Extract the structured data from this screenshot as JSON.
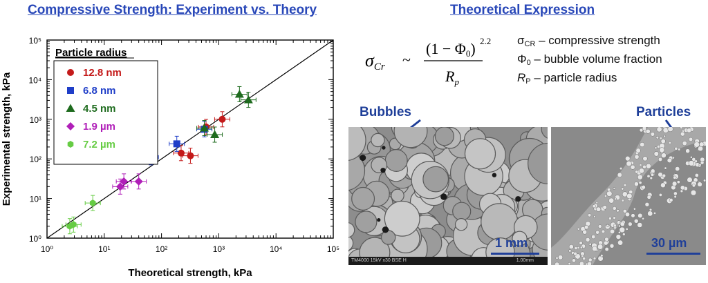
{
  "headings": {
    "left": "Compressive Strength: Experiment vs. Theory",
    "right": "Theoretical Expression"
  },
  "formula": {
    "lhs_symbol": "σ",
    "lhs_sub": "Cr",
    "relation": "~",
    "numerator": "(1 − Φ",
    "numerator_sub": "0",
    "numerator_close": ")",
    "exponent": "2.2",
    "denominator": "R",
    "denominator_sub": "p"
  },
  "definitions": [
    {
      "symbol": "σ",
      "sub": "CR",
      "text": " – compressive strength"
    },
    {
      "symbol": "Φ",
      "sub": "0",
      "text": " – bubble volume fraction"
    },
    {
      "symbol": "R",
      "sub": "P",
      "text": " – particle radius"
    }
  ],
  "images": {
    "left_label": "Bubbles",
    "right_label": "Particles",
    "left_scale": "1 mm",
    "right_scale": "30 µm",
    "left_footer": "TM4000  15kV x30 BSE H",
    "left_footer_right": "1.00mm"
  },
  "colors": {
    "heading": "#2847b8",
    "red": "#c41a1a",
    "blue": "#1f3ec8",
    "green": "#1e6b1e",
    "magenta": "#b01fb8",
    "lightgreen": "#66cc44"
  },
  "chart_data": {
    "type": "scatter",
    "xlabel": "Theoretical strength, kPa",
    "ylabel": "Experimental strength, kPa",
    "xscale": "log",
    "yscale": "log",
    "xlim": [
      1,
      100000
    ],
    "ylim": [
      1,
      100000
    ],
    "xticks": [
      "10⁰",
      "10¹",
      "10²",
      "10³",
      "10⁴",
      "10⁵"
    ],
    "yticks": [
      "10⁰",
      "10¹",
      "10²",
      "10³",
      "10⁴",
      "10⁵"
    ],
    "grid": false,
    "reference_line": "y = x",
    "legend_title": "Particle radius",
    "legend_placement": "top-left",
    "series": [
      {
        "name": "12.8 nm",
        "marker": "circle",
        "color": "#c41a1a",
        "points": [
          [
            220,
            140
          ],
          [
            320,
            120
          ],
          [
            1150,
            1000
          ],
          [
            600,
            640
          ]
        ]
      },
      {
        "name": "6.8 nm",
        "marker": "square",
        "color": "#1f3ec8",
        "points": [
          [
            65,
            110
          ],
          [
            185,
            240
          ],
          [
            560,
            560
          ]
        ]
      },
      {
        "name": "4.5 nm",
        "marker": "triangle",
        "color": "#1e6b1e",
        "points": [
          [
            850,
            410
          ],
          [
            2300,
            4300
          ],
          [
            3300,
            3100
          ],
          [
            560,
            600
          ]
        ]
      },
      {
        "name": "1.9 µm",
        "marker": "diamond",
        "color": "#b01fb8",
        "points": [
          [
            19,
            20
          ],
          [
            22,
            27
          ],
          [
            40,
            27
          ]
        ]
      },
      {
        "name": "7.2 µm",
        "marker": "hexagon",
        "color": "#66cc44",
        "points": [
          [
            2.5,
            2.0
          ],
          [
            2.9,
            2.2
          ],
          [
            6.3,
            7.7
          ]
        ]
      }
    ]
  }
}
